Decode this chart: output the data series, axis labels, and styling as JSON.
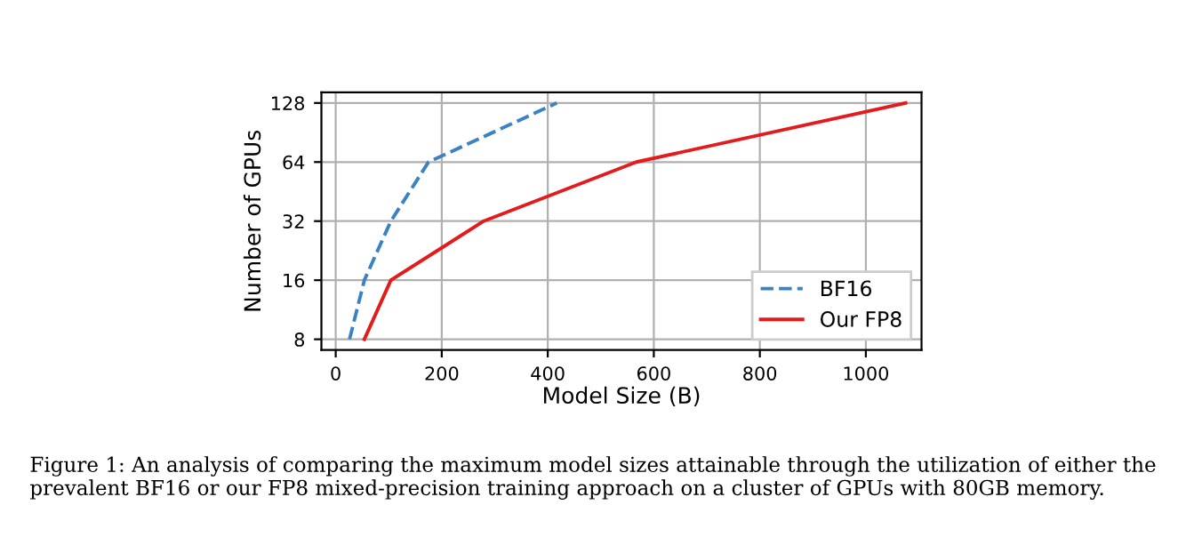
{
  "chart_data": {
    "type": "line",
    "xlabel": "Model Size (B)",
    "ylabel": "Number of GPUs",
    "series": [
      {
        "name": "BF16",
        "color": "#3b82c4",
        "line_style": "dashed",
        "x": [
          26,
          54,
          104,
          175,
          417
        ],
        "values": [
          8,
          16,
          32,
          64,
          128
        ]
      },
      {
        "name": "Our FP8",
        "color": "#e41a1c",
        "line_style": "solid",
        "x": [
          54,
          104,
          279,
          567,
          1075
        ],
        "values": [
          8,
          16,
          32,
          64,
          128
        ]
      }
    ],
    "log": "y",
    "xlim": [
      -27,
      1105
    ],
    "ylim": [
      7.05,
      145
    ],
    "xticks": [
      0,
      200,
      400,
      600,
      800,
      1000
    ],
    "yticks": [
      8,
      16,
      32,
      64,
      128
    ],
    "grid": true,
    "legend": "bottom right",
    "marker": "none",
    "annotations": [
      "Figure 1: An analysis of comparing the maximum model sizes attainable through the utilization of either the prevalent BF16 or our FP8 mixed-precision training approach on a cluster of GPUs with 80GB memory."
    ]
  }
}
